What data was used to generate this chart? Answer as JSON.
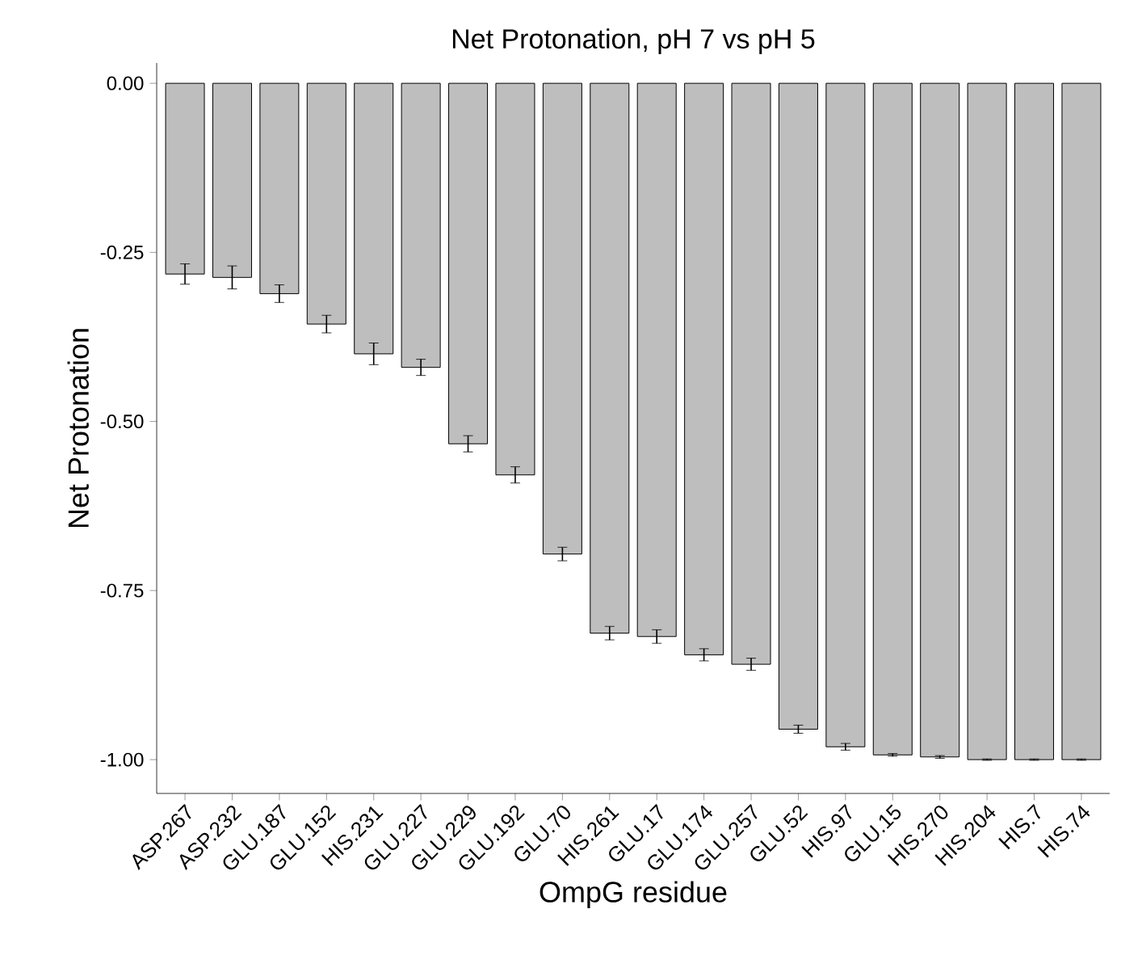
{
  "chart_data": {
    "type": "bar",
    "title": "Net Protonation, pH 7 vs pH 5",
    "xlabel": "OmpG residue",
    "ylabel": "Net Protonation",
    "categories": [
      "ASP.267",
      "ASP.232",
      "GLU.187",
      "GLU.152",
      "HIS.231",
      "GLU.227",
      "GLU.229",
      "GLU.192",
      "GLU.70",
      "HIS.261",
      "GLU.17",
      "GLU.174",
      "GLU.257",
      "GLU.52",
      "HIS.97",
      "GLU.15",
      "HIS.270",
      "HIS.204",
      "HIS.7",
      "HIS.74"
    ],
    "values": [
      -0.282,
      -0.287,
      -0.311,
      -0.356,
      -0.4,
      -0.42,
      -0.533,
      -0.579,
      -0.696,
      -0.813,
      -0.818,
      -0.845,
      -0.859,
      -0.955,
      -0.981,
      -0.993,
      -0.996,
      -1.0,
      -1.0,
      -1.0
    ],
    "errors": [
      0.015,
      0.017,
      0.013,
      0.013,
      0.016,
      0.012,
      0.012,
      0.012,
      0.01,
      0.01,
      0.01,
      0.009,
      0.009,
      0.006,
      0.005,
      0.002,
      0.002,
      0.001,
      0.001,
      0.001
    ],
    "color": "#bebebe",
    "ylim": [
      -1.05,
      0.03
    ],
    "yticks": [
      {
        "value": -1.0,
        "label": "-1.00"
      },
      {
        "value": -0.75,
        "label": "-0.75"
      },
      {
        "value": -0.5,
        "label": "-0.50"
      },
      {
        "value": -0.25,
        "label": "-0.25"
      },
      {
        "value": 0.0,
        "label": "0.00"
      }
    ],
    "grid": false
  }
}
